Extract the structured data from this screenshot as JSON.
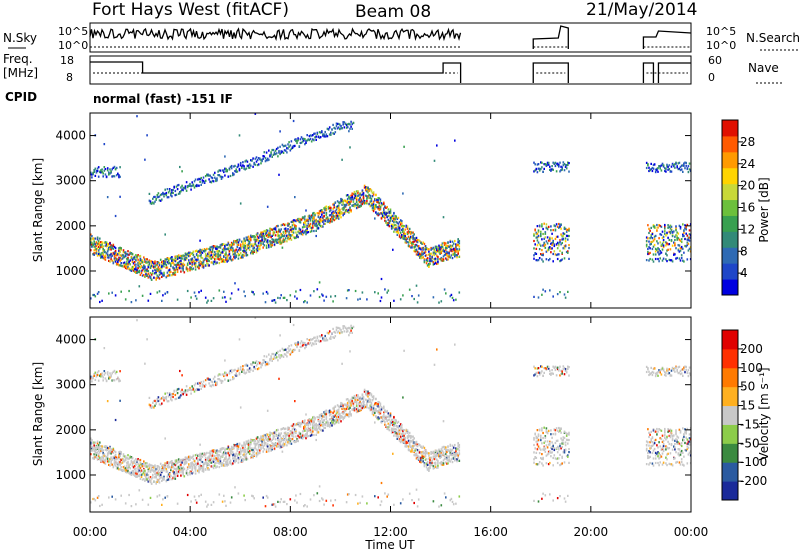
{
  "header": {
    "station": "Fort Hays West (fitACF)",
    "beam": "Beam 08",
    "date": "21/May/2014"
  },
  "strips": {
    "nsky_label": "N.Sky",
    "nsky_ticks": [
      "10^5",
      "10^0"
    ],
    "nsearch_label": "N.Search",
    "nsearch_ticks": [
      "10^5",
      "10^0"
    ],
    "freq_label": "Freq.",
    "freq_unit": "[MHz]",
    "freq_ticks": [
      "18",
      "8"
    ],
    "nave_label": "Nave",
    "nave_ticks": [
      "60",
      "0"
    ],
    "cpid_label": "CPID",
    "cpid_text": "normal (fast) -151 IF"
  },
  "chart_data": [
    {
      "type": "heatmap",
      "panel": "power",
      "ylabel": "Slant Range [km]",
      "xlabel": "",
      "xlim": [
        "00:00",
        "24:00"
      ],
      "ylim": [
        180,
        4500
      ],
      "yticks": [
        1000,
        2000,
        3000,
        4000
      ],
      "colorbar": {
        "label": "Power [dB]",
        "ticks": [
          "4",
          "8",
          "12",
          "16",
          "20",
          "24",
          "28"
        ],
        "colors": [
          "#0000e0",
          "#1e46c8",
          "#2e6ab4",
          "#328a78",
          "#38a050",
          "#6cc03c",
          "#c8d838",
          "#ffd400",
          "#ff9a00",
          "#ff5a00",
          "#e01000"
        ]
      },
      "data_gaps": [
        [
          "14:45",
          "17:40"
        ],
        [
          "19:10",
          "22:10"
        ]
      ],
      "features": [
        {
          "name": "main backscatter band",
          "range_km_at": [
            [
              "00:00",
              1600
            ],
            [
              "02:30",
              1000
            ],
            [
              "06:00",
              1500
            ],
            [
              "09:00",
              2100
            ],
            [
              "11:00",
              2700
            ],
            [
              "13:30",
              1300
            ],
            [
              "14:30",
              1500
            ]
          ]
        },
        {
          "name": "upper band",
          "range_km_at": [
            [
              "02:30",
              2600
            ],
            [
              "06:00",
              3300
            ],
            [
              "08:30",
              3900
            ],
            [
              "10:00",
              4200
            ]
          ]
        }
      ]
    },
    {
      "type": "heatmap",
      "panel": "velocity",
      "ylabel": "Slant Range [km]",
      "xlabel": "Time UT",
      "xticks": [
        "00:00",
        "04:00",
        "08:00",
        "12:00",
        "16:00",
        "20:00",
        "00:00"
      ],
      "ylim": [
        180,
        4500
      ],
      "yticks": [
        1000,
        2000,
        3000,
        4000
      ],
      "colorbar": {
        "label": "Velocity [m s⁻¹]",
        "ticks": [
          "200",
          "100",
          "50",
          "15",
          "-15",
          "-50",
          "-100",
          "-200"
        ],
        "colors": [
          "#1a2a9a",
          "#2a5aa0",
          "#3a8a40",
          "#8ccc4a",
          "#c8c8c8",
          "#ffb020",
          "#ff7a00",
          "#ff3000",
          "#e00000"
        ]
      }
    }
  ]
}
